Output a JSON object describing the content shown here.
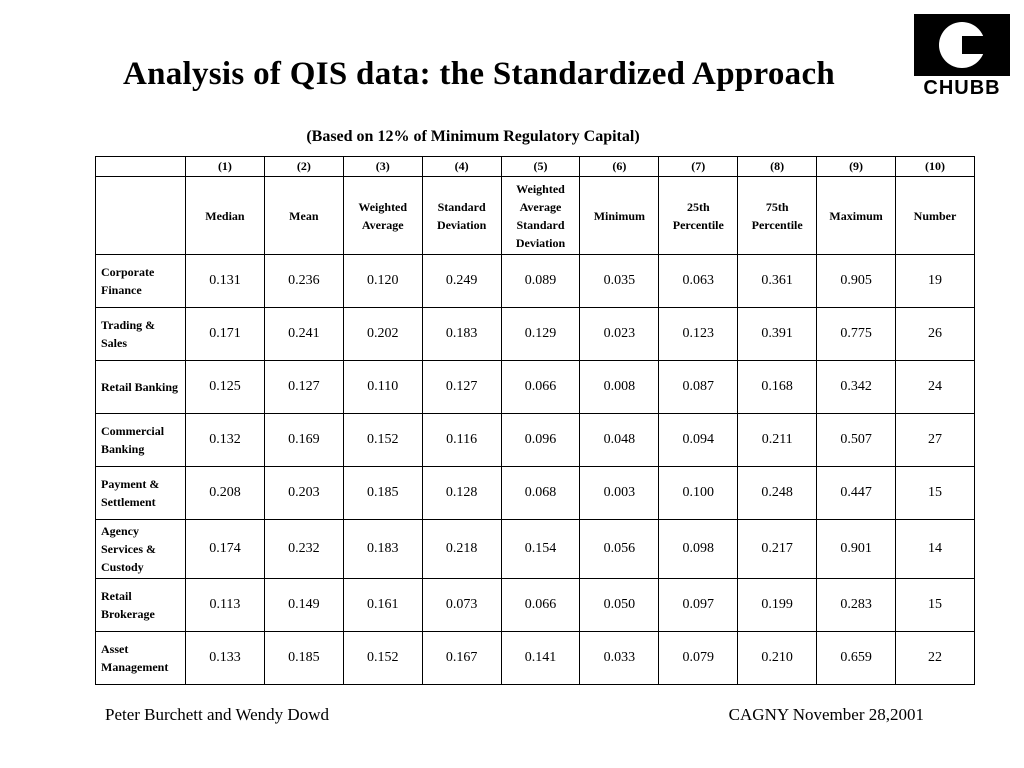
{
  "slide": {
    "title": "Analysis of QIS data: the Standardized Approach",
    "subtitle": "(Based on 12% of Minimum Regulatory Capital)",
    "logo_text": "CHUBB",
    "footer_left": "Peter Burchett and Wendy Dowd",
    "footer_right": "CAGNY November 28,2001"
  },
  "chart_data": {
    "type": "table",
    "column_numbers": [
      "(1)",
      "(2)",
      "(3)",
      "(4)",
      "(5)",
      "(6)",
      "(7)",
      "(8)",
      "(9)",
      "(10)"
    ],
    "columns": [
      "Median",
      "Mean",
      "Weighted Average",
      "Standard Deviation",
      "Weighted Average Standard Deviation",
      "Minimum",
      "25th Percentile",
      "75th Percentile",
      "Maximum",
      "Number"
    ],
    "rows": [
      {
        "label": "Corporate Finance",
        "values": [
          "0.131",
          "0.236",
          "0.120",
          "0.249",
          "0.089",
          "0.035",
          "0.063",
          "0.361",
          "0.905",
          "19"
        ]
      },
      {
        "label": "Trading & Sales",
        "values": [
          "0.171",
          "0.241",
          "0.202",
          "0.183",
          "0.129",
          "0.023",
          "0.123",
          "0.391",
          "0.775",
          "26"
        ]
      },
      {
        "label": "Retail Banking",
        "values": [
          "0.125",
          "0.127",
          "0.110",
          "0.127",
          "0.066",
          "0.008",
          "0.087",
          "0.168",
          "0.342",
          "24"
        ]
      },
      {
        "label": "Commercial Banking",
        "values": [
          "0.132",
          "0.169",
          "0.152",
          "0.116",
          "0.096",
          "0.048",
          "0.094",
          "0.211",
          "0.507",
          "27"
        ]
      },
      {
        "label": "Payment & Settlement",
        "values": [
          "0.208",
          "0.203",
          "0.185",
          "0.128",
          "0.068",
          "0.003",
          "0.100",
          "0.248",
          "0.447",
          "15"
        ]
      },
      {
        "label": "Agency Services & Custody",
        "values": [
          "0.174",
          "0.232",
          "0.183",
          "0.218",
          "0.154",
          "0.056",
          "0.098",
          "0.217",
          "0.901",
          "14"
        ]
      },
      {
        "label": "Retail Brokerage",
        "values": [
          "0.113",
          "0.149",
          "0.161",
          "0.073",
          "0.066",
          "0.050",
          "0.097",
          "0.199",
          "0.283",
          "15"
        ]
      },
      {
        "label": "Asset Management",
        "values": [
          "0.133",
          "0.185",
          "0.152",
          "0.167",
          "0.141",
          "0.033",
          "0.079",
          "0.210",
          "0.659",
          "22"
        ]
      }
    ]
  }
}
